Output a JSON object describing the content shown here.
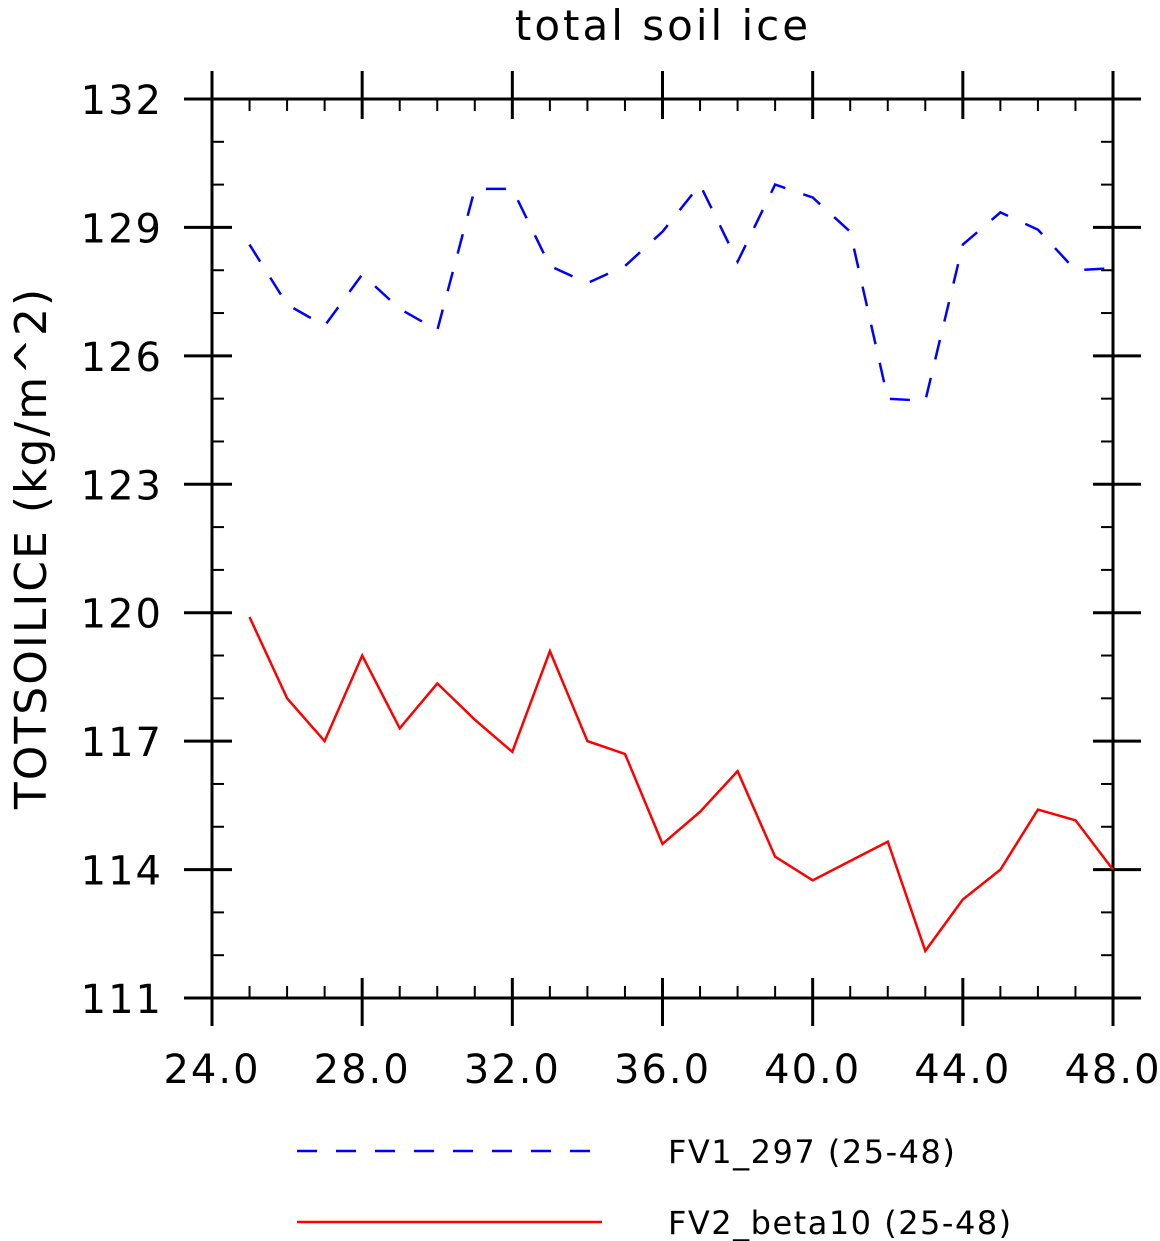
{
  "chart_data": {
    "type": "line",
    "title": "total soil ice",
    "ylabel": "TOTSOILICE   (kg/m^2)",
    "xlabel": "",
    "xlim": [
      24,
      48
    ],
    "ylim": [
      111,
      132
    ],
    "xticks": [
      24,
      28,
      32,
      36,
      40,
      44,
      48
    ],
    "xtick_labels": [
      "24.0",
      "28.0",
      "32.0",
      "36.0",
      "40.0",
      "44.0",
      "48.0"
    ],
    "yticks": [
      111,
      114,
      117,
      120,
      123,
      126,
      129,
      132
    ],
    "ytick_labels": [
      "111",
      "114",
      "117",
      "120",
      "123",
      "126",
      "129",
      "132"
    ],
    "x": [
      25,
      26,
      27,
      28,
      29,
      30,
      31,
      32,
      33,
      34,
      35,
      36,
      37,
      38,
      39,
      40,
      41,
      42,
      43,
      44,
      45,
      46,
      47,
      48
    ],
    "series": [
      {
        "name": "FV1_297 (25-48)",
        "color": "#0000ff",
        "style": "dashed",
        "values": [
          128.6,
          127.2,
          126.7,
          127.9,
          127.1,
          126.6,
          129.9,
          129.9,
          128.1,
          127.7,
          128.1,
          128.9,
          130.0,
          128.2,
          130.0,
          129.7,
          128.9,
          125.0,
          124.95,
          128.6,
          129.35,
          128.95,
          128.0,
          128.05
        ]
      },
      {
        "name": "FV2_beta10 (25-48)",
        "color": "#ff0000",
        "style": "solid",
        "values": [
          119.9,
          118.0,
          117.0,
          119.0,
          117.3,
          118.35,
          117.5,
          116.75,
          119.1,
          117.0,
          116.7,
          114.6,
          115.35,
          116.3,
          114.3,
          113.75,
          114.2,
          114.65,
          112.1,
          113.3,
          114.0,
          115.4,
          115.15,
          114.0
        ]
      }
    ],
    "legend_position": "bottom",
    "grid": false
  }
}
